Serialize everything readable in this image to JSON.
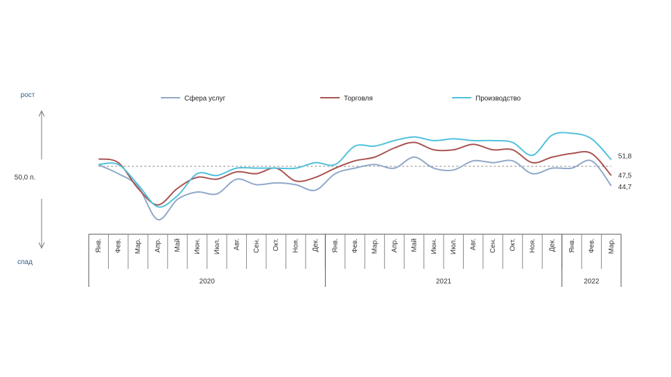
{
  "chart_data": {
    "type": "line",
    "labels": {
      "up": "рост",
      "down": "спад",
      "reference": "50,0 п."
    },
    "reference_value": 50.0,
    "ylim": [
      35,
      58
    ],
    "categories": [
      "Янв.",
      "Фев.",
      "Мар.",
      "Апр.",
      "Май",
      "Июн.",
      "Июл.",
      "Авг.",
      "Сен.",
      "Окт.",
      "Ноя.",
      "Дек.",
      "Янв.",
      "Фев.",
      "Мар.",
      "Апр.",
      "Май",
      "Июн.",
      "Июл.",
      "Авг.",
      "Сен.",
      "Окт.",
      "Ноя.",
      "Дек.",
      "Янв.",
      "Фев.",
      "Мар."
    ],
    "years": [
      {
        "label": "2020",
        "start": 0,
        "end": 11
      },
      {
        "label": "2021",
        "start": 12,
        "end": 23
      },
      {
        "label": "2022",
        "start": 24,
        "end": 26
      }
    ],
    "series": [
      {
        "name": "Сфера услуг",
        "color": "#8FA8C8",
        "values": [
          50.4,
          48.0,
          44.5,
          35.5,
          41.0,
          43.0,
          42.5,
          46.5,
          45.0,
          45.5,
          45.0,
          43.5,
          48.0,
          49.5,
          50.5,
          49.5,
          52.5,
          49.5,
          49.0,
          51.5,
          51.0,
          51.5,
          48.0,
          49.5,
          49.5,
          51.5,
          44.7
        ]
      },
      {
        "name": "Торговля",
        "color": "#A85350",
        "values": [
          52.0,
          51.0,
          44.0,
          39.5,
          44.0,
          47.0,
          46.5,
          48.5,
          48.0,
          49.5,
          46.0,
          47.0,
          49.5,
          51.5,
          52.5,
          55.0,
          56.5,
          54.5,
          54.5,
          56.0,
          54.5,
          54.5,
          51.0,
          52.5,
          53.5,
          53.5,
          47.5
        ]
      },
      {
        "name": "Производство",
        "color": "#4FC1DC",
        "values": [
          50.5,
          50.5,
          45.0,
          39.0,
          42.0,
          48.0,
          47.5,
          49.5,
          49.5,
          49.5,
          49.5,
          51.0,
          50.5,
          55.5,
          55.5,
          57.0,
          58.0,
          57.0,
          57.5,
          57.0,
          57.0,
          56.5,
          53.0,
          58.5,
          59.0,
          57.5,
          51.8
        ]
      }
    ],
    "end_labels": [
      "51,8",
      "47,5",
      "44,7"
    ],
    "legend_position": "top"
  }
}
